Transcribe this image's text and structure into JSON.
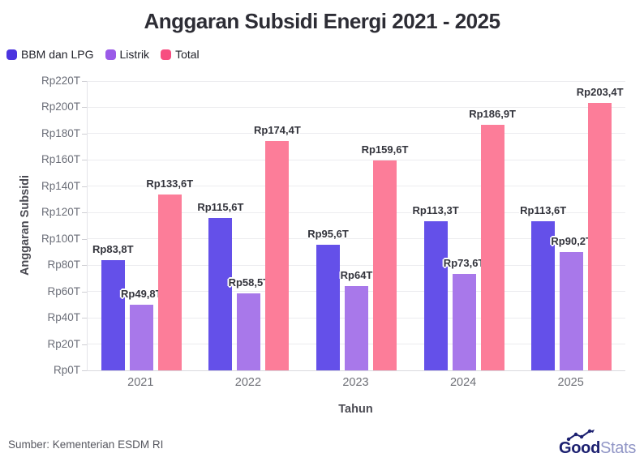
{
  "title": "Anggaran Subsidi Energi 2021 - 2025",
  "chart_data": {
    "type": "bar",
    "title": "Anggaran Subsidi Energi 2021 - 2025",
    "categories": [
      "2021",
      "2022",
      "2023",
      "2024",
      "2025"
    ],
    "series": [
      {
        "name": "BBM dan LPG",
        "color": "#6450e9",
        "legend_color": "#4b34df",
        "values": [
          83.8,
          115.6,
          95.6,
          113.3,
          113.6
        ],
        "labels": [
          "Rp83,8T",
          "Rp115,6T",
          "Rp95,6T",
          "Rp113,3T",
          "Rp113,6T"
        ]
      },
      {
        "name": "Listrik",
        "color": "#a878ea",
        "legend_color": "#9a5ae8",
        "values": [
          49.8,
          58.5,
          64,
          73.6,
          90.2
        ],
        "labels": [
          "Rp49,8T",
          "Rp58,5T",
          "Rp64T",
          "Rp73,6T",
          "Rp90,2T"
        ]
      },
      {
        "name": "Total",
        "color": "#fc7d99",
        "legend_color": "#f74d80",
        "values": [
          133.6,
          174.4,
          159.6,
          186.9,
          203.4
        ],
        "labels": [
          "Rp133,6T",
          "Rp174,4T",
          "Rp159,6T",
          "Rp186,9T",
          "Rp203,4T"
        ]
      }
    ],
    "xlabel": "Tahun",
    "ylabel": "Anggaran Subsidi",
    "ylim": [
      0,
      220
    ],
    "ytick_step": 20,
    "yticks": [
      "Rp0T",
      "Rp20T",
      "Rp40T",
      "Rp60T",
      "Rp80T",
      "Rp100T",
      "Rp120T",
      "Rp140T",
      "Rp160T",
      "Rp180T",
      "Rp200T",
      "Rp220T"
    ],
    "grid": true,
    "legend_position": "top-left"
  },
  "footer": {
    "source": "Sumber: Kementerian ESDM RI",
    "logo": {
      "bold": "Good",
      "light": "Stats"
    }
  }
}
